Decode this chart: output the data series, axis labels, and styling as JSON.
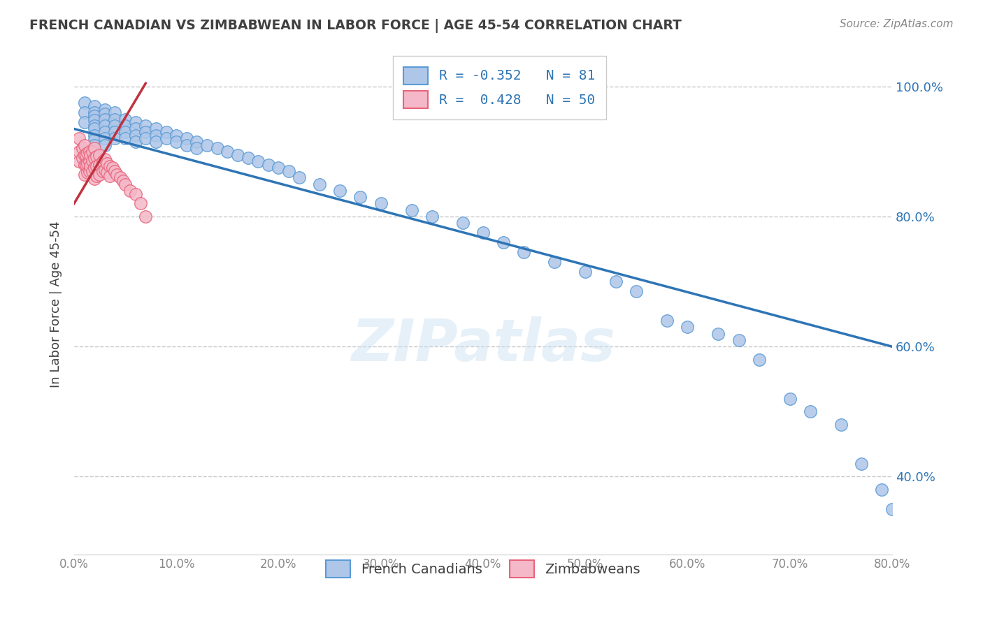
{
  "title": "FRENCH CANADIAN VS ZIMBABWEAN IN LABOR FORCE | AGE 45-54 CORRELATION CHART",
  "source": "Source: ZipAtlas.com",
  "ylabel": "In Labor Force | Age 45-54",
  "legend_labels": [
    "French Canadians",
    "Zimbabweans"
  ],
  "blue_R": -0.352,
  "blue_N": 81,
  "pink_R": 0.428,
  "pink_N": 50,
  "xlim": [
    0.0,
    0.8
  ],
  "ylim": [
    0.28,
    1.05
  ],
  "xticks": [
    0.0,
    0.1,
    0.2,
    0.3,
    0.4,
    0.5,
    0.6,
    0.7,
    0.8
  ],
  "yticks": [
    0.4,
    0.6,
    0.8,
    1.0
  ],
  "blue_color": "#aec6e8",
  "blue_edge": "#5b9bd5",
  "pink_color": "#f4b8c8",
  "pink_edge": "#e8647a",
  "blue_line_color": "#2e75b6",
  "pink_line_color": "#c0323e",
  "background_color": "#ffffff",
  "grid_color": "#c8c8c8",
  "title_color": "#404040",
  "blue_scatter_x": [
    0.01,
    0.01,
    0.01,
    0.02,
    0.02,
    0.02,
    0.02,
    0.02,
    0.02,
    0.02,
    0.02,
    0.02,
    0.03,
    0.03,
    0.03,
    0.03,
    0.03,
    0.03,
    0.03,
    0.04,
    0.04,
    0.04,
    0.04,
    0.04,
    0.05,
    0.05,
    0.05,
    0.05,
    0.06,
    0.06,
    0.06,
    0.06,
    0.07,
    0.07,
    0.07,
    0.08,
    0.08,
    0.08,
    0.09,
    0.09,
    0.1,
    0.1,
    0.11,
    0.11,
    0.12,
    0.12,
    0.13,
    0.14,
    0.15,
    0.16,
    0.17,
    0.18,
    0.19,
    0.2,
    0.21,
    0.22,
    0.24,
    0.26,
    0.28,
    0.3,
    0.33,
    0.35,
    0.38,
    0.4,
    0.42,
    0.44,
    0.47,
    0.5,
    0.53,
    0.55,
    0.58,
    0.6,
    0.63,
    0.65,
    0.67,
    0.7,
    0.72,
    0.75,
    0.77,
    0.79,
    0.8
  ],
  "blue_scatter_y": [
    0.975,
    0.96,
    0.945,
    0.97,
    0.96,
    0.955,
    0.948,
    0.94,
    0.935,
    0.925,
    0.918,
    0.91,
    0.965,
    0.958,
    0.95,
    0.94,
    0.93,
    0.92,
    0.91,
    0.96,
    0.95,
    0.94,
    0.93,
    0.92,
    0.95,
    0.94,
    0.93,
    0.92,
    0.945,
    0.935,
    0.925,
    0.915,
    0.94,
    0.93,
    0.92,
    0.935,
    0.925,
    0.915,
    0.93,
    0.92,
    0.925,
    0.915,
    0.92,
    0.91,
    0.915,
    0.905,
    0.91,
    0.905,
    0.9,
    0.895,
    0.89,
    0.885,
    0.88,
    0.875,
    0.87,
    0.86,
    0.85,
    0.84,
    0.83,
    0.82,
    0.81,
    0.8,
    0.79,
    0.775,
    0.76,
    0.745,
    0.73,
    0.715,
    0.7,
    0.685,
    0.64,
    0.63,
    0.62,
    0.61,
    0.58,
    0.52,
    0.5,
    0.48,
    0.42,
    0.38,
    0.35
  ],
  "pink_scatter_x": [
    0.005,
    0.005,
    0.005,
    0.008,
    0.008,
    0.01,
    0.01,
    0.01,
    0.01,
    0.012,
    0.012,
    0.013,
    0.013,
    0.013,
    0.015,
    0.015,
    0.015,
    0.016,
    0.016,
    0.018,
    0.018,
    0.018,
    0.02,
    0.02,
    0.02,
    0.02,
    0.022,
    0.022,
    0.022,
    0.025,
    0.025,
    0.025,
    0.028,
    0.028,
    0.03,
    0.03,
    0.032,
    0.032,
    0.035,
    0.035,
    0.038,
    0.04,
    0.042,
    0.045,
    0.048,
    0.05,
    0.055,
    0.06,
    0.065,
    0.07
  ],
  "pink_scatter_y": [
    0.92,
    0.9,
    0.885,
    0.905,
    0.89,
    0.91,
    0.895,
    0.88,
    0.865,
    0.895,
    0.88,
    0.898,
    0.882,
    0.868,
    0.9,
    0.885,
    0.87,
    0.895,
    0.878,
    0.9,
    0.886,
    0.87,
    0.905,
    0.89,
    0.875,
    0.858,
    0.892,
    0.877,
    0.862,
    0.895,
    0.88,
    0.865,
    0.885,
    0.87,
    0.888,
    0.872,
    0.882,
    0.868,
    0.878,
    0.862,
    0.875,
    0.87,
    0.865,
    0.86,
    0.855,
    0.85,
    0.84,
    0.835,
    0.82,
    0.8
  ],
  "blue_line_x0": 0.0,
  "blue_line_y0": 0.935,
  "blue_line_x1": 0.8,
  "blue_line_y1": 0.6,
  "pink_line_x0": 0.0,
  "pink_line_y0": 0.82,
  "pink_line_x1": 0.07,
  "pink_line_y1": 1.005
}
